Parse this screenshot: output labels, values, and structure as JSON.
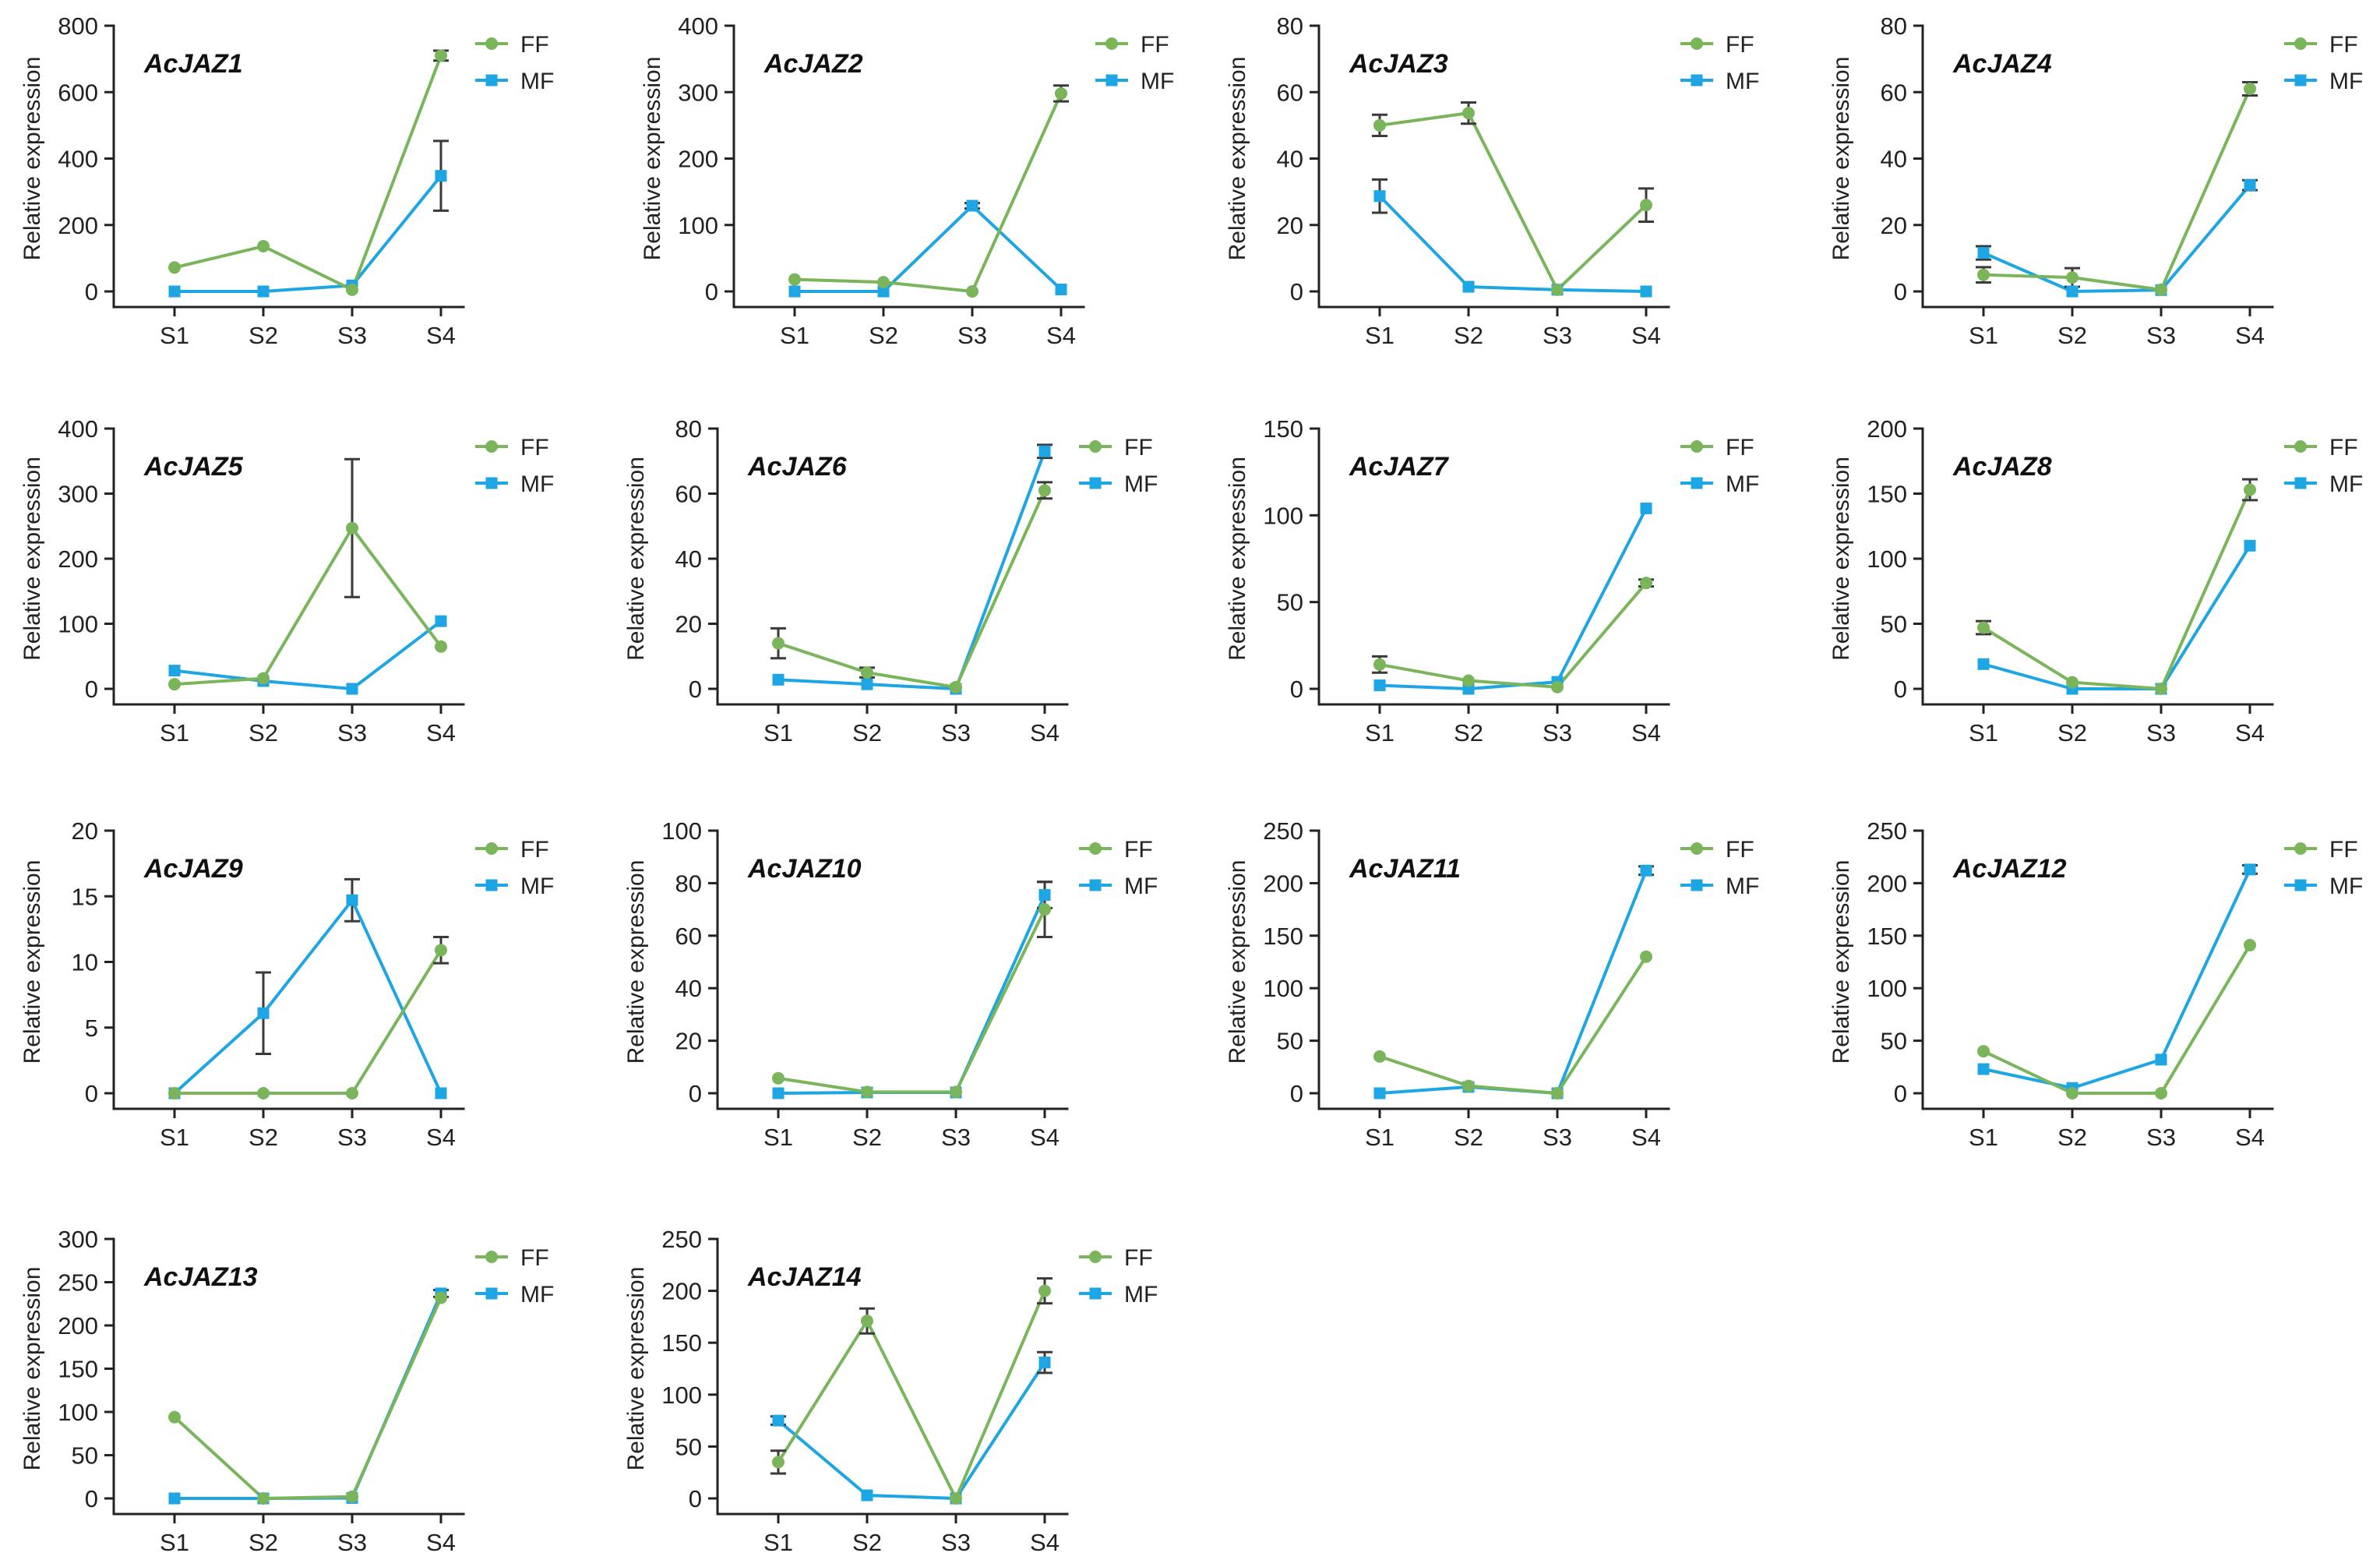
{
  "colors": {
    "FF": "#7ab55c",
    "MF": "#1ea5e3",
    "axis": "#222222",
    "error_bar": "#3a3a3a"
  },
  "chart_data": [
    {
      "type": "line",
      "title": "AcJAZ1",
      "xlabel": "",
      "ylabel": "Relative expression",
      "legend": "top-right",
      "categories": [
        "S1",
        "S2",
        "S3",
        "S4"
      ],
      "ylim": [
        0,
        800
      ],
      "yticks": [
        0,
        200,
        400,
        600,
        800
      ],
      "series": [
        {
          "name": "FF",
          "values": [
            72,
            136,
            5,
            710
          ],
          "errors": [
            0,
            0,
            0,
            15
          ]
        },
        {
          "name": "MF",
          "values": [
            0,
            0,
            18,
            348
          ],
          "errors": [
            0,
            0,
            0,
            105
          ]
        }
      ]
    },
    {
      "type": "line",
      "title": "AcJAZ2",
      "xlabel": "",
      "ylabel": "Relative expression",
      "legend": "top-right",
      "categories": [
        "S1",
        "S2",
        "S3",
        "S4"
      ],
      "ylim": [
        0,
        400
      ],
      "yticks": [
        0,
        100,
        200,
        300,
        400
      ],
      "series": [
        {
          "name": "FF",
          "values": [
            18,
            14,
            0,
            298
          ],
          "errors": [
            0,
            0,
            0,
            12
          ]
        },
        {
          "name": "MF",
          "values": [
            0,
            0,
            129,
            3
          ],
          "errors": [
            0,
            0,
            4,
            0
          ]
        }
      ]
    },
    {
      "type": "line",
      "title": "AcJAZ3",
      "xlabel": "",
      "ylabel": "Relative expression",
      "legend": "top-right",
      "categories": [
        "S1",
        "S2",
        "S3",
        "S4"
      ],
      "ylim": [
        0,
        80
      ],
      "yticks": [
        0,
        20,
        40,
        60,
        80
      ],
      "series": [
        {
          "name": "FF",
          "values": [
            50,
            53.7,
            0.5,
            26
          ],
          "errors": [
            3.2,
            3.2,
            0,
            5
          ]
        },
        {
          "name": "MF",
          "values": [
            28.7,
            1.4,
            0.5,
            0
          ],
          "errors": [
            5,
            0,
            0,
            0
          ]
        }
      ]
    },
    {
      "type": "line",
      "title": "AcJAZ4",
      "xlabel": "",
      "ylabel": "Relative expression",
      "legend": "top-right",
      "categories": [
        "S1",
        "S2",
        "S3",
        "S4"
      ],
      "ylim": [
        0,
        80
      ],
      "yticks": [
        0,
        20,
        40,
        60,
        80
      ],
      "series": [
        {
          "name": "FF",
          "values": [
            5,
            4.2,
            0.5,
            61
          ],
          "errors": [
            2.3,
            2.8,
            0,
            2
          ]
        },
        {
          "name": "MF",
          "values": [
            11.6,
            0,
            0.4,
            32
          ],
          "errors": [
            2,
            0,
            0,
            1.5
          ]
        }
      ]
    },
    {
      "type": "line",
      "title": "AcJAZ5",
      "xlabel": "",
      "ylabel": "Relative expression",
      "legend": "top-right",
      "categories": [
        "S1",
        "S2",
        "S3",
        "S4"
      ],
      "ylim": [
        0,
        400
      ],
      "yticks": [
        0,
        100,
        200,
        300,
        400
      ],
      "series": [
        {
          "name": "FF",
          "values": [
            7,
            16,
            247,
            65
          ],
          "errors": [
            0,
            0,
            106,
            0
          ]
        },
        {
          "name": "MF",
          "values": [
            28,
            12,
            0,
            104
          ],
          "errors": [
            0,
            0,
            0,
            0
          ]
        }
      ]
    },
    {
      "type": "line",
      "title": "AcJAZ6",
      "xlabel": "",
      "ylabel": "Relative expression",
      "legend": "top-right",
      "categories": [
        "S1",
        "S2",
        "S3",
        "S4"
      ],
      "ylim": [
        0,
        80
      ],
      "yticks": [
        0,
        20,
        40,
        60,
        80
      ],
      "series": [
        {
          "name": "FF",
          "values": [
            14,
            5,
            0.5,
            61
          ],
          "errors": [
            4.6,
            1.5,
            0,
            2.5
          ]
        },
        {
          "name": "MF",
          "values": [
            2.8,
            1.4,
            0,
            73
          ],
          "errors": [
            0,
            0,
            0,
            2
          ]
        }
      ]
    },
    {
      "type": "line",
      "title": "AcJAZ7",
      "xlabel": "",
      "ylabel": "Relative expression",
      "legend": "top-right",
      "categories": [
        "S1",
        "S2",
        "S3",
        "S4"
      ],
      "ylim": [
        0,
        150
      ],
      "yticks": [
        0,
        50,
        100,
        150
      ],
      "series": [
        {
          "name": "FF",
          "values": [
            14,
            4.7,
            1,
            61
          ],
          "errors": [
            4.7,
            0,
            0,
            2
          ]
        },
        {
          "name": "MF",
          "values": [
            2,
            0,
            4,
            104
          ],
          "errors": [
            0,
            0,
            0,
            0
          ]
        }
      ]
    },
    {
      "type": "line",
      "title": "AcJAZ8",
      "xlabel": "",
      "ylabel": "Relative expression",
      "legend": "top-right",
      "categories": [
        "S1",
        "S2",
        "S3",
        "S4"
      ],
      "ylim": [
        0,
        200
      ],
      "yticks": [
        0,
        50,
        100,
        150,
        200
      ],
      "series": [
        {
          "name": "FF",
          "values": [
            47,
            5,
            0,
            153
          ],
          "errors": [
            5,
            0,
            0,
            8
          ]
        },
        {
          "name": "MF",
          "values": [
            19,
            0,
            0,
            110
          ],
          "errors": [
            0,
            0,
            0,
            0
          ]
        }
      ]
    },
    {
      "type": "line",
      "title": "AcJAZ9",
      "xlabel": "",
      "ylabel": "Relative expression",
      "legend": "top-right",
      "categories": [
        "S1",
        "S2",
        "S3",
        "S4"
      ],
      "ylim": [
        0,
        20
      ],
      "yticks": [
        0,
        5,
        10,
        15,
        20
      ],
      "series": [
        {
          "name": "FF",
          "values": [
            0,
            0,
            0,
            10.9
          ],
          "errors": [
            0,
            0,
            0,
            1
          ]
        },
        {
          "name": "MF",
          "values": [
            0,
            6.1,
            14.7,
            0
          ],
          "errors": [
            0,
            3.1,
            1.6,
            0
          ]
        }
      ]
    },
    {
      "type": "line",
      "title": "AcJAZ10",
      "xlabel": "",
      "ylabel": "Relative expression",
      "legend": "top-right",
      "categories": [
        "S1",
        "S2",
        "S3",
        "S4"
      ],
      "ylim": [
        0,
        100
      ],
      "yticks": [
        0,
        20,
        40,
        60,
        80,
        100
      ],
      "series": [
        {
          "name": "FF",
          "values": [
            5.7,
            0.5,
            0.5,
            70
          ],
          "errors": [
            0,
            0,
            0,
            10.5
          ]
        },
        {
          "name": "MF",
          "values": [
            0,
            0.3,
            0.3,
            75.5
          ],
          "errors": [
            0,
            0,
            0,
            5
          ]
        }
      ]
    },
    {
      "type": "line",
      "title": "AcJAZ11",
      "xlabel": "",
      "ylabel": "Relative expression",
      "legend": "top-right",
      "categories": [
        "S1",
        "S2",
        "S3",
        "S4"
      ],
      "ylim": [
        0,
        250
      ],
      "yticks": [
        0,
        50,
        100,
        150,
        200,
        250
      ],
      "series": [
        {
          "name": "FF",
          "values": [
            35,
            7,
            0,
            130
          ],
          "errors": [
            0,
            0,
            0,
            0
          ]
        },
        {
          "name": "MF",
          "values": [
            0,
            6,
            0,
            212
          ],
          "errors": [
            0,
            0,
            0,
            4
          ]
        }
      ]
    },
    {
      "type": "line",
      "title": "AcJAZ12",
      "xlabel": "",
      "ylabel": "Relative expression",
      "legend": "top-right",
      "categories": [
        "S1",
        "S2",
        "S3",
        "S4"
      ],
      "ylim": [
        0,
        250
      ],
      "yticks": [
        0,
        50,
        100,
        150,
        200,
        250
      ],
      "series": [
        {
          "name": "FF",
          "values": [
            40,
            0,
            0,
            141
          ],
          "errors": [
            0,
            0,
            0,
            0
          ]
        },
        {
          "name": "MF",
          "values": [
            23,
            5,
            32,
            213
          ],
          "errors": [
            0,
            0,
            0,
            4
          ]
        }
      ]
    },
    {
      "type": "line",
      "title": "AcJAZ13",
      "xlabel": "",
      "ylabel": "Relative expression",
      "legend": "top-right",
      "categories": [
        "S1",
        "S2",
        "S3",
        "S4"
      ],
      "ylim": [
        0,
        300
      ],
      "yticks": [
        0,
        50,
        100,
        150,
        200,
        250,
        300
      ],
      "series": [
        {
          "name": "FF",
          "values": [
            94,
            0,
            2,
            232
          ],
          "errors": [
            0,
            0,
            0,
            0
          ]
        },
        {
          "name": "MF",
          "values": [
            0,
            0,
            0.5,
            237
          ],
          "errors": [
            0,
            0,
            0,
            4
          ]
        }
      ]
    },
    {
      "type": "line",
      "title": "AcJAZ14",
      "xlabel": "",
      "ylabel": "Relative expression",
      "legend": "top-right",
      "categories": [
        "S1",
        "S2",
        "S3",
        "S4"
      ],
      "ylim": [
        0,
        250
      ],
      "yticks": [
        0,
        50,
        100,
        150,
        200,
        250
      ],
      "series": [
        {
          "name": "FF",
          "values": [
            35,
            171,
            0,
            200
          ],
          "errors": [
            11,
            12,
            0,
            12
          ]
        },
        {
          "name": "MF",
          "values": [
            75,
            3,
            0,
            131
          ],
          "errors": [
            4,
            0,
            0,
            10
          ]
        }
      ]
    }
  ]
}
